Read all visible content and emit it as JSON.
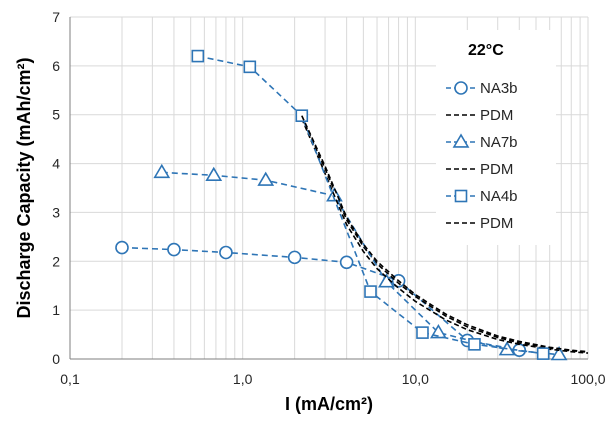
{
  "chart_data": {
    "type": "scatter",
    "xlabel": "I (mA/cm²)",
    "ylabel": "Discharge Capacity (mAh/cm²)",
    "x_scale": "log",
    "xlim": [
      0.1,
      100
    ],
    "ylim": [
      0,
      7
    ],
    "x_ticks": [
      {
        "value": 0.1,
        "label": "0,1"
      },
      {
        "value": 1,
        "label": "1,0"
      },
      {
        "value": 10,
        "label": "10,0"
      },
      {
        "value": 100,
        "label": "100,0"
      }
    ],
    "y_ticks": [
      {
        "value": 0,
        "label": "0"
      },
      {
        "value": 1,
        "label": "1"
      },
      {
        "value": 2,
        "label": "2"
      },
      {
        "value": 3,
        "label": "3"
      },
      {
        "value": 4,
        "label": "4"
      },
      {
        "value": 5,
        "label": "5"
      },
      {
        "value": 6,
        "label": "6"
      },
      {
        "value": 7,
        "label": "7"
      }
    ],
    "grid": true,
    "legend_position": "top-right",
    "legend_title": "22°C",
    "colors": {
      "measured": "#2E75B6",
      "model": "#000000",
      "grid": "#D9D9D9"
    },
    "series": [
      {
        "name": "NA3b",
        "marker": "circle",
        "style": "dashed-marker",
        "x": [
          0.2,
          0.4,
          0.8,
          2.0,
          4.0,
          8.0,
          20.0,
          40.0
        ],
        "y": [
          2.28,
          2.24,
          2.18,
          2.08,
          1.98,
          1.6,
          0.38,
          0.18
        ]
      },
      {
        "name": "PDM",
        "marker": "none",
        "style": "dashed-line",
        "x": [
          2.2,
          3.0,
          4.0,
          5.0,
          6.0,
          8.0,
          10.0,
          15.0,
          20.0,
          30.0,
          40.0,
          60.0,
          80.0,
          100.0
        ],
        "y": [
          4.95,
          3.9,
          2.85,
          2.3,
          1.95,
          1.55,
          1.28,
          0.88,
          0.66,
          0.44,
          0.33,
          0.22,
          0.17,
          0.14
        ]
      },
      {
        "name": "NA7b",
        "marker": "triangle",
        "style": "dashed-marker",
        "x": [
          0.34,
          0.68,
          1.36,
          3.4,
          6.8,
          13.6,
          34.0,
          68.0
        ],
        "y": [
          3.82,
          3.76,
          3.66,
          3.34,
          1.58,
          0.54,
          0.19,
          0.09
        ]
      },
      {
        "name": "PDM",
        "marker": "none",
        "style": "dashed-line",
        "x": [
          2.2,
          3.0,
          4.0,
          5.0,
          6.0,
          8.0,
          10.0,
          15.0,
          20.0,
          30.0,
          40.0,
          60.0,
          80.0,
          100.0
        ],
        "y": [
          4.92,
          3.8,
          2.75,
          2.2,
          1.85,
          1.45,
          1.18,
          0.8,
          0.6,
          0.4,
          0.3,
          0.2,
          0.15,
          0.12
        ]
      },
      {
        "name": "NA4b",
        "marker": "square",
        "style": "dashed-marker",
        "x": [
          0.55,
          1.1,
          2.2,
          5.5,
          11.0,
          22.0,
          55.0
        ],
        "y": [
          6.2,
          5.98,
          4.98,
          1.38,
          0.54,
          0.3,
          0.11
        ]
      },
      {
        "name": "PDM",
        "marker": "none",
        "style": "dashed-line",
        "x": [
          2.2,
          3.0,
          4.0,
          5.0,
          6.0,
          8.0,
          10.0,
          15.0,
          20.0,
          30.0,
          40.0,
          60.0,
          80.0,
          100.0
        ],
        "y": [
          4.98,
          3.95,
          2.9,
          2.35,
          2.0,
          1.6,
          1.32,
          0.92,
          0.7,
          0.47,
          0.36,
          0.24,
          0.18,
          0.15
        ]
      }
    ]
  }
}
